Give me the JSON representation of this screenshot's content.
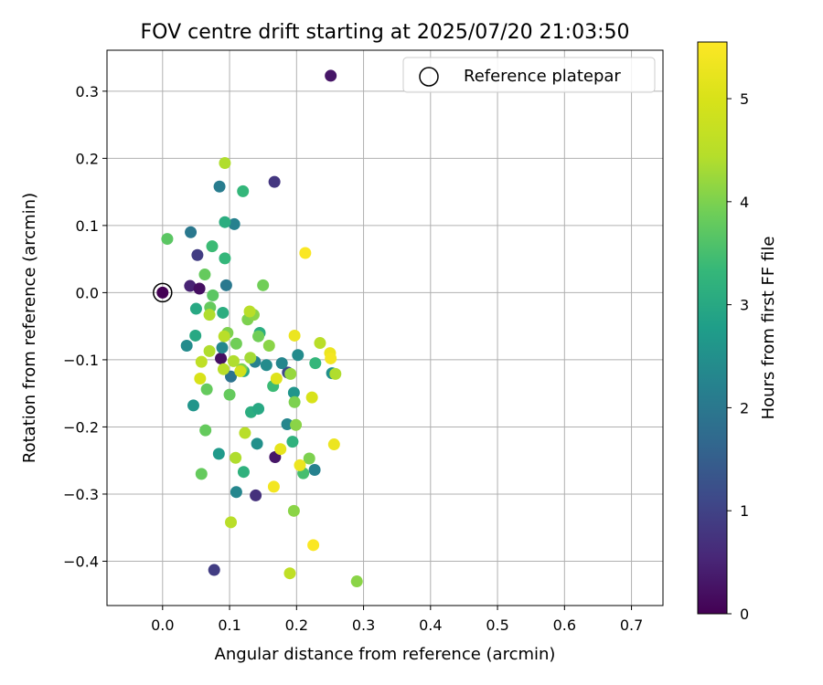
{
  "chart_data": {
    "type": "scatter",
    "title": "FOV centre drift starting at 2025/07/20 21:03:50",
    "xlabel": "Angular distance from reference (arcmin)",
    "ylabel": "Rotation from reference (arcmin)",
    "xlim": [
      -0.083,
      0.747
    ],
    "ylim": [
      -0.466,
      0.361
    ],
    "xticks": [
      0.0,
      0.1,
      0.2,
      0.3,
      0.4,
      0.5,
      0.6,
      0.7
    ],
    "xtick_labels": [
      "0.0",
      "0.1",
      "0.2",
      "0.3",
      "0.4",
      "0.5",
      "0.6",
      "0.7"
    ],
    "yticks": [
      0.3,
      0.2,
      0.1,
      0.0,
      -0.1,
      -0.2,
      -0.3,
      -0.4
    ],
    "ytick_labels": [
      "0.3",
      "0.2",
      "0.1",
      "0.0",
      "−0.1",
      "−0.2",
      "−0.3",
      "−0.4"
    ],
    "grid": true,
    "legend": {
      "placement": "top-right",
      "entries": [
        "Reference platepar"
      ]
    },
    "reference_point": {
      "x": 0.0,
      "y": 0.0
    },
    "colorbar": {
      "label": "Hours from first FF file",
      "min": 0,
      "max": 5.55,
      "colormap": "viridis",
      "ticks": [
        0,
        1,
        2,
        3,
        4,
        5
      ],
      "tick_labels": [
        "0",
        "1",
        "2",
        "3",
        "4",
        "5"
      ]
    },
    "points": [
      {
        "x": 0.0,
        "y": 0.0,
        "h": 0.0
      },
      {
        "x": 0.251,
        "y": 0.323,
        "h": 0.3
      },
      {
        "x": 0.167,
        "y": 0.165,
        "h": 0.8
      },
      {
        "x": 0.041,
        "y": 0.01,
        "h": 0.5
      },
      {
        "x": 0.052,
        "y": 0.056,
        "h": 0.9
      },
      {
        "x": 0.055,
        "y": 0.006,
        "h": 0.2
      },
      {
        "x": 0.087,
        "y": -0.098,
        "h": 0.2
      },
      {
        "x": 0.168,
        "y": -0.245,
        "h": 0.3
      },
      {
        "x": 0.139,
        "y": -0.302,
        "h": 0.7
      },
      {
        "x": 0.077,
        "y": -0.413,
        "h": 0.9
      },
      {
        "x": 0.187,
        "y": -0.119,
        "h": 1.1
      },
      {
        "x": 0.042,
        "y": 0.09,
        "h": 2.0
      },
      {
        "x": 0.085,
        "y": 0.158,
        "h": 2.1
      },
      {
        "x": 0.107,
        "y": 0.102,
        "h": 2.2
      },
      {
        "x": 0.095,
        "y": 0.011,
        "h": 2.0
      },
      {
        "x": 0.036,
        "y": -0.079,
        "h": 2.4
      },
      {
        "x": 0.046,
        "y": -0.168,
        "h": 2.6
      },
      {
        "x": 0.089,
        "y": -0.082,
        "h": 2.3
      },
      {
        "x": 0.102,
        "y": -0.125,
        "h": 1.9
      },
      {
        "x": 0.11,
        "y": -0.297,
        "h": 2.3
      },
      {
        "x": 0.084,
        "y": -0.24,
        "h": 2.7
      },
      {
        "x": 0.138,
        "y": -0.103,
        "h": 2.2
      },
      {
        "x": 0.155,
        "y": -0.108,
        "h": 2.4
      },
      {
        "x": 0.141,
        "y": -0.225,
        "h": 2.5
      },
      {
        "x": 0.178,
        "y": -0.105,
        "h": 2.3
      },
      {
        "x": 0.202,
        "y": -0.093,
        "h": 2.4
      },
      {
        "x": 0.227,
        "y": -0.264,
        "h": 2.2
      },
      {
        "x": 0.196,
        "y": -0.149,
        "h": 2.6
      },
      {
        "x": 0.186,
        "y": -0.196,
        "h": 2.3
      },
      {
        "x": 0.253,
        "y": -0.12,
        "h": 2.5
      },
      {
        "x": 0.049,
        "y": -0.064,
        "h": 3.0
      },
      {
        "x": 0.05,
        "y": -0.024,
        "h": 3.0
      },
      {
        "x": 0.09,
        "y": -0.03,
        "h": 3.1
      },
      {
        "x": 0.093,
        "y": 0.105,
        "h": 3.1
      },
      {
        "x": 0.093,
        "y": 0.051,
        "h": 3.3
      },
      {
        "x": 0.074,
        "y": 0.069,
        "h": 3.4
      },
      {
        "x": 0.12,
        "y": 0.151,
        "h": 3.3
      },
      {
        "x": 0.121,
        "y": -0.267,
        "h": 3.2
      },
      {
        "x": 0.132,
        "y": -0.178,
        "h": 3.1
      },
      {
        "x": 0.143,
        "y": -0.173,
        "h": 3.0
      },
      {
        "x": 0.145,
        "y": -0.06,
        "h": 3.1
      },
      {
        "x": 0.165,
        "y": -0.139,
        "h": 3.4
      },
      {
        "x": 0.121,
        "y": -0.117,
        "h": 3.0
      },
      {
        "x": 0.194,
        "y": -0.222,
        "h": 3.2
      },
      {
        "x": 0.21,
        "y": -0.269,
        "h": 3.5
      },
      {
        "x": 0.228,
        "y": -0.105,
        "h": 3.3
      },
      {
        "x": 0.007,
        "y": 0.08,
        "h": 3.7
      },
      {
        "x": 0.063,
        "y": 0.027,
        "h": 3.8
      },
      {
        "x": 0.075,
        "y": -0.004,
        "h": 3.7
      },
      {
        "x": 0.071,
        "y": -0.022,
        "h": 3.8
      },
      {
        "x": 0.066,
        "y": -0.144,
        "h": 3.8
      },
      {
        "x": 0.064,
        "y": -0.205,
        "h": 3.8
      },
      {
        "x": 0.058,
        "y": -0.27,
        "h": 3.8
      },
      {
        "x": 0.097,
        "y": -0.06,
        "h": 4.0
      },
      {
        "x": 0.1,
        "y": -0.152,
        "h": 3.8
      },
      {
        "x": 0.11,
        "y": -0.076,
        "h": 3.9
      },
      {
        "x": 0.118,
        "y": -0.114,
        "h": 4.0
      },
      {
        "x": 0.127,
        "y": -0.04,
        "h": 4.0
      },
      {
        "x": 0.136,
        "y": -0.033,
        "h": 4.1
      },
      {
        "x": 0.143,
        "y": -0.065,
        "h": 3.9
      },
      {
        "x": 0.15,
        "y": 0.011,
        "h": 3.9
      },
      {
        "x": 0.159,
        "y": -0.079,
        "h": 4.1
      },
      {
        "x": 0.191,
        "y": -0.121,
        "h": 4.2
      },
      {
        "x": 0.197,
        "y": -0.163,
        "h": 4.0
      },
      {
        "x": 0.199,
        "y": -0.197,
        "h": 4.1
      },
      {
        "x": 0.219,
        "y": -0.247,
        "h": 4.0
      },
      {
        "x": 0.196,
        "y": -0.325,
        "h": 4.1
      },
      {
        "x": 0.29,
        "y": -0.43,
        "h": 4.1
      },
      {
        "x": 0.093,
        "y": 0.193,
        "h": 4.4
      },
      {
        "x": 0.07,
        "y": -0.033,
        "h": 4.4
      },
      {
        "x": 0.092,
        "y": -0.065,
        "h": 4.5
      },
      {
        "x": 0.07,
        "y": -0.087,
        "h": 4.4
      },
      {
        "x": 0.058,
        "y": -0.103,
        "h": 4.6
      },
      {
        "x": 0.106,
        "y": -0.102,
        "h": 4.4
      },
      {
        "x": 0.091,
        "y": -0.114,
        "h": 4.5
      },
      {
        "x": 0.109,
        "y": -0.246,
        "h": 4.4
      },
      {
        "x": 0.123,
        "y": -0.209,
        "h": 4.5
      },
      {
        "x": 0.13,
        "y": -0.028,
        "h": 4.5
      },
      {
        "x": 0.131,
        "y": -0.097,
        "h": 4.3
      },
      {
        "x": 0.102,
        "y": -0.342,
        "h": 4.5
      },
      {
        "x": 0.19,
        "y": -0.418,
        "h": 4.6
      },
      {
        "x": 0.235,
        "y": -0.075,
        "h": 4.5
      },
      {
        "x": 0.258,
        "y": -0.121,
        "h": 4.4
      },
      {
        "x": 0.056,
        "y": -0.128,
        "h": 5.0
      },
      {
        "x": 0.116,
        "y": -0.117,
        "h": 4.9
      },
      {
        "x": 0.17,
        "y": -0.128,
        "h": 5.1
      },
      {
        "x": 0.176,
        "y": -0.233,
        "h": 5.2
      },
      {
        "x": 0.166,
        "y": -0.289,
        "h": 5.4
      },
      {
        "x": 0.197,
        "y": -0.064,
        "h": 5.3
      },
      {
        "x": 0.205,
        "y": -0.257,
        "h": 5.3
      },
      {
        "x": 0.223,
        "y": -0.156,
        "h": 5.0
      },
      {
        "x": 0.213,
        "y": 0.059,
        "h": 5.5
      },
      {
        "x": 0.25,
        "y": -0.09,
        "h": 5.3
      },
      {
        "x": 0.251,
        "y": -0.098,
        "h": 5.4
      },
      {
        "x": 0.256,
        "y": -0.226,
        "h": 5.3
      },
      {
        "x": 0.225,
        "y": -0.376,
        "h": 5.5
      }
    ]
  }
}
